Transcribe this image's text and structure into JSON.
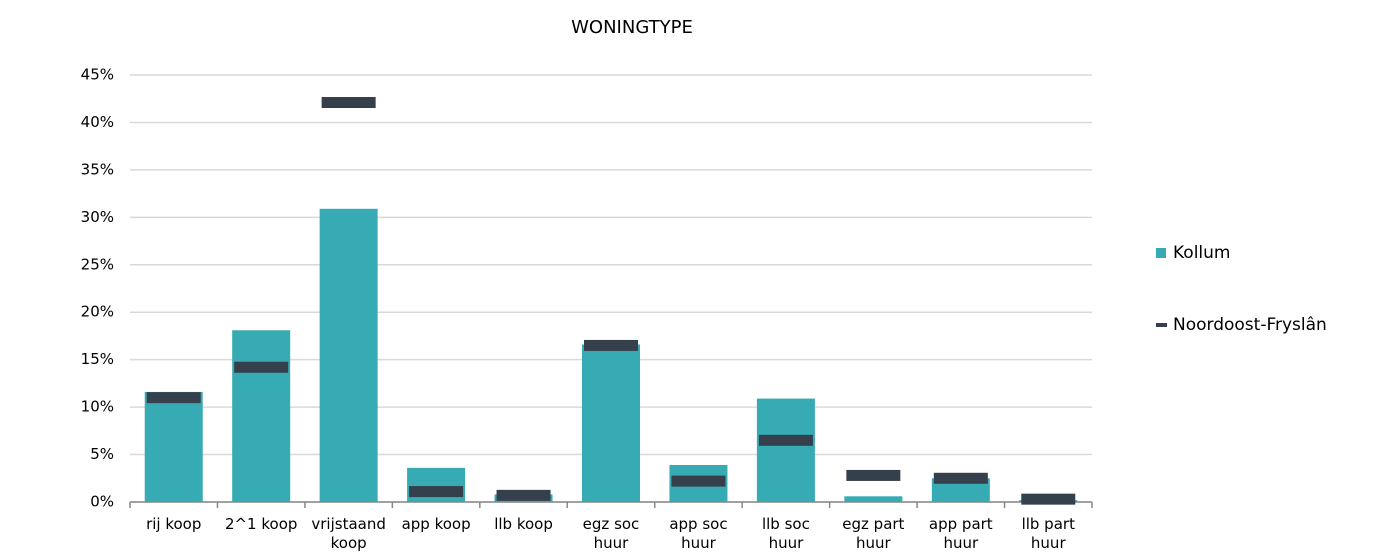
{
  "chart_data": {
    "type": "bar",
    "title": "WONINGTYPE",
    "categories": [
      "rij koop",
      "2^1 koop",
      "vrijstaand koop",
      "app koop",
      "llb koop",
      "egz soc huur",
      "app soc huur",
      "llb soc huur",
      "egz part huur",
      "app part huur",
      "llb part huur"
    ],
    "series": [
      {
        "name": "Kollum",
        "color": "#37abb3",
        "mark": "bar",
        "values": [
          11.6,
          18.1,
          30.9,
          3.6,
          0.8,
          16.6,
          3.9,
          10.9,
          0.6,
          2.5,
          0.2
        ]
      },
      {
        "name": "Noordoost-Fryslân",
        "color": "#363f4c",
        "mark": "dash",
        "values": [
          11.0,
          14.2,
          42.1,
          1.1,
          0.7,
          16.5,
          2.2,
          6.5,
          2.8,
          2.5,
          0.3
        ]
      }
    ],
    "ylim": [
      0,
      45
    ],
    "yticks": [
      {
        "value": 0,
        "label": "0%"
      },
      {
        "value": 5,
        "label": "5%"
      },
      {
        "value": 10,
        "label": "10%"
      },
      {
        "value": 15,
        "label": "15%"
      },
      {
        "value": 20,
        "label": "20%"
      },
      {
        "value": 25,
        "label": "25%"
      },
      {
        "value": 30,
        "label": "30%"
      },
      {
        "value": 35,
        "label": "35%"
      },
      {
        "value": 40,
        "label": "40%"
      },
      {
        "value": 45,
        "label": "45%"
      }
    ],
    "grid": true,
    "legend": "right"
  }
}
